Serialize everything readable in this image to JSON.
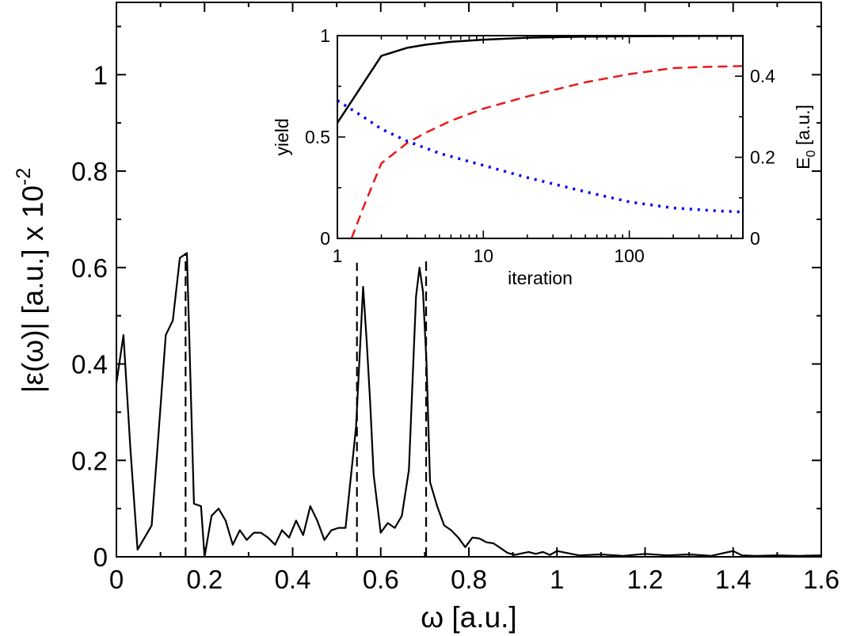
{
  "chart_data": [
    {
      "type": "line",
      "title": "",
      "xlabel": "ω [a.u.]",
      "ylabel": "|ε(ω)|  [a.u.] x 10",
      "ylabel_exponent": "-2",
      "xlim": [
        0,
        1.6
      ],
      "ylim": [
        0,
        1.15
      ],
      "xticks": [
        0,
        0.2,
        0.4,
        0.6,
        0.8,
        1.0,
        1.2,
        1.4,
        1.6
      ],
      "xtick_labels": [
        "0",
        "0.2",
        "0.4",
        "0.6",
        "0.8",
        "1",
        "1.2",
        "1.4",
        "1.6"
      ],
      "yticks": [
        0,
        0.2,
        0.4,
        0.6,
        0.8,
        1.0
      ],
      "ytick_labels": [
        "0",
        "0.2",
        "0.4",
        "0.6",
        "0.8",
        "1"
      ],
      "grid": false,
      "series": [
        {
          "name": "spectrum",
          "color": "#000000",
          "style": "solid",
          "x": [
            0,
            0.016,
            0.032,
            0.048,
            0.064,
            0.08,
            0.096,
            0.112,
            0.128,
            0.144,
            0.16,
            0.176,
            0.192,
            0.2,
            0.216,
            0.232,
            0.248,
            0.264,
            0.28,
            0.296,
            0.312,
            0.328,
            0.344,
            0.36,
            0.376,
            0.392,
            0.408,
            0.424,
            0.44,
            0.456,
            0.472,
            0.488,
            0.504,
            0.52,
            0.536,
            0.544,
            0.56,
            0.568,
            0.576,
            0.584,
            0.6,
            0.616,
            0.632,
            0.648,
            0.664,
            0.68,
            0.688,
            0.696,
            0.704,
            0.712,
            0.728,
            0.744,
            0.76,
            0.776,
            0.792,
            0.808,
            0.824,
            0.84,
            0.856,
            0.872,
            0.888,
            0.904,
            0.92,
            0.936,
            0.952,
            0.968,
            0.984,
            1.0,
            1.05,
            1.1,
            1.15,
            1.2,
            1.25,
            1.3,
            1.35,
            1.38,
            1.4,
            1.42,
            1.45,
            1.5,
            1.55,
            1.6
          ],
          "values": [
            0.36,
            0.46,
            0.22,
            0.015,
            0.04,
            0.065,
            0.26,
            0.46,
            0.49,
            0.62,
            0.63,
            0.11,
            0.105,
            0.0,
            0.085,
            0.1,
            0.075,
            0.025,
            0.055,
            0.035,
            0.05,
            0.05,
            0.04,
            0.025,
            0.055,
            0.04,
            0.075,
            0.045,
            0.105,
            0.075,
            0.035,
            0.055,
            0.06,
            0.06,
            0.2,
            0.27,
            0.56,
            0.45,
            0.32,
            0.17,
            0.05,
            0.07,
            0.06,
            0.085,
            0.18,
            0.54,
            0.6,
            0.55,
            0.4,
            0.155,
            0.105,
            0.065,
            0.055,
            0.04,
            0.02,
            0.04,
            0.038,
            0.03,
            0.028,
            0.018,
            0.008,
            0.004,
            0.007,
            0.01,
            0.006,
            0.01,
            0.004,
            0.012,
            0.003,
            0.005,
            0.002,
            0.006,
            0.003,
            0.005,
            0.002,
            0.008,
            0.012,
            0.003,
            0.002,
            0.003,
            0.002,
            0.003
          ]
        },
        {
          "name": "transition-markers",
          "color": "#000000",
          "style": "dashed",
          "x": [
            0.157,
            0.546,
            0.703
          ],
          "values": [
            0.63,
            0.61,
            0.62
          ]
        }
      ]
    },
    {
      "type": "line",
      "title": "",
      "xlabel": "iteration",
      "ylabel": "yield",
      "y2label": "E",
      "y2label_subscript": "0",
      "y2label_unit": " [a.u.]",
      "xscale": "log",
      "xlim": [
        1,
        600
      ],
      "ylim": [
        0,
        1
      ],
      "y2lim": [
        0,
        0.5
      ],
      "xticks": [
        1,
        10,
        100
      ],
      "xtick_labels": [
        "1",
        "10",
        "100"
      ],
      "yticks": [
        0,
        0.5,
        1
      ],
      "ytick_labels": [
        "0",
        "0.5",
        "1"
      ],
      "y2ticks": [
        0,
        0.2,
        0.4
      ],
      "y2tick_labels": [
        "0",
        "0.2",
        "0.4"
      ],
      "grid": false,
      "series": [
        {
          "name": "yield",
          "axis": "left",
          "color": "#000000",
          "style": "solid",
          "x": [
            1,
            2,
            3,
            4,
            6,
            10,
            20,
            50,
            100,
            200,
            600
          ],
          "values": [
            0.57,
            0.9,
            0.94,
            0.955,
            0.97,
            0.98,
            0.99,
            0.995,
            0.997,
            0.998,
            0.999
          ]
        },
        {
          "name": "red-dashed",
          "axis": "left",
          "color": "#e8191a",
          "style": "dashed",
          "x": [
            1.25,
            1.5,
            2,
            3,
            4,
            6,
            10,
            20,
            50,
            100,
            200,
            300,
            600
          ],
          "values": [
            0.0,
            0.15,
            0.37,
            0.47,
            0.52,
            0.58,
            0.64,
            0.7,
            0.77,
            0.81,
            0.84,
            0.845,
            0.85
          ]
        },
        {
          "name": "blue-dotted",
          "axis": "right",
          "color": "#0000ee",
          "style": "dotted",
          "x": [
            1,
            1.5,
            2,
            3,
            5,
            10,
            20,
            50,
            100,
            200,
            400,
            600
          ],
          "values": [
            0.34,
            0.3,
            0.27,
            0.24,
            0.21,
            0.18,
            0.15,
            0.115,
            0.09,
            0.075,
            0.068,
            0.065
          ]
        }
      ]
    }
  ]
}
